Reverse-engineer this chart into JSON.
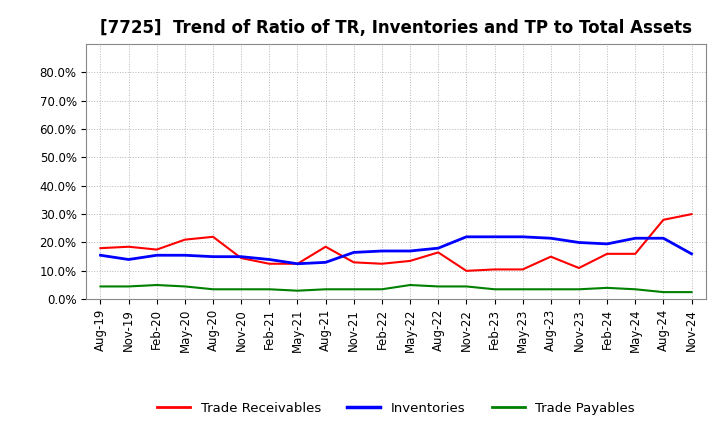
{
  "title": "[7725]  Trend of Ratio of TR, Inventories and TP to Total Assets",
  "x_labels": [
    "Aug-19",
    "Nov-19",
    "Feb-20",
    "May-20",
    "Aug-20",
    "Nov-20",
    "Feb-21",
    "May-21",
    "Aug-21",
    "Nov-21",
    "Feb-22",
    "May-22",
    "Aug-22",
    "Nov-22",
    "Feb-23",
    "May-23",
    "Aug-23",
    "Nov-23",
    "Feb-24",
    "May-24",
    "Aug-24",
    "Nov-24"
  ],
  "trade_receivables": [
    18.0,
    18.5,
    17.5,
    21.0,
    22.0,
    14.5,
    12.5,
    12.5,
    18.5,
    13.0,
    12.5,
    13.5,
    16.5,
    10.0,
    10.5,
    10.5,
    15.0,
    11.0,
    16.0,
    16.0,
    28.0,
    30.0
  ],
  "inventories": [
    15.5,
    14.0,
    15.5,
    15.5,
    15.0,
    15.0,
    14.0,
    12.5,
    13.0,
    16.5,
    17.0,
    17.0,
    18.0,
    22.0,
    22.0,
    22.0,
    21.5,
    20.0,
    19.5,
    21.5,
    21.5,
    16.0
  ],
  "trade_payables": [
    4.5,
    4.5,
    5.0,
    4.5,
    3.5,
    3.5,
    3.5,
    3.0,
    3.5,
    3.5,
    3.5,
    5.0,
    4.5,
    4.5,
    3.5,
    3.5,
    3.5,
    3.5,
    4.0,
    3.5,
    2.5,
    2.5
  ],
  "ylim": [
    0,
    90
  ],
  "yticks": [
    0,
    10,
    20,
    30,
    40,
    50,
    60,
    70,
    80
  ],
  "ytick_labels": [
    "0.0%",
    "10.0%",
    "20.0%",
    "30.0%",
    "40.0%",
    "50.0%",
    "60.0%",
    "70.0%",
    "80.0%"
  ],
  "color_tr": "#ff0000",
  "color_inv": "#0000ff",
  "color_tp": "#008000",
  "legend_labels": [
    "Trade Receivables",
    "Inventories",
    "Trade Payables"
  ],
  "background_color": "#ffffff",
  "grid_color": "#b0b0b0",
  "title_fontsize": 12,
  "axis_fontsize": 8.5,
  "legend_fontsize": 9.5
}
